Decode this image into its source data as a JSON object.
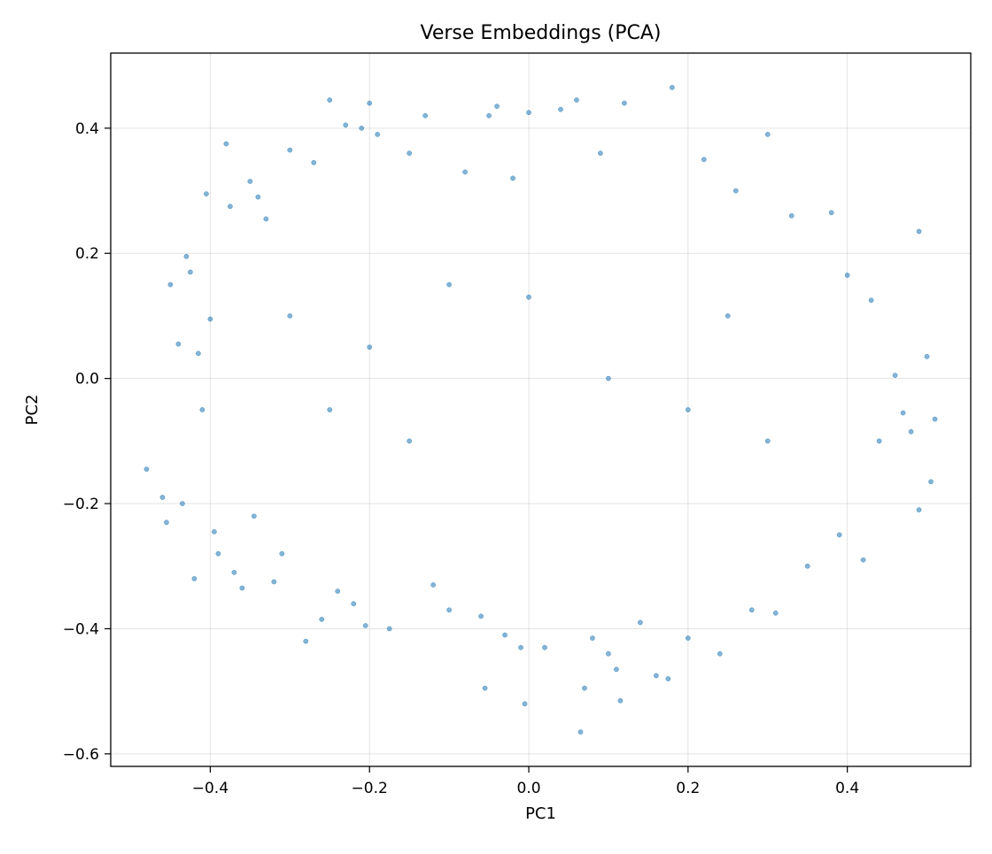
{
  "chart_data": {
    "type": "scatter",
    "title": "Verse Embeddings (PCA)",
    "xlabel": "PC1",
    "ylabel": "PC2",
    "xlim": [
      -0.525,
      0.555
    ],
    "ylim": [
      -0.62,
      0.52
    ],
    "grid": true,
    "legend": "none",
    "marker_color": "#1f77b4",
    "marker_alpha": 0.55,
    "x_ticks": [
      {
        "value": -0.4,
        "label": "−0.4"
      },
      {
        "value": -0.2,
        "label": "−0.2"
      },
      {
        "value": 0.0,
        "label": "0.0"
      },
      {
        "value": 0.2,
        "label": "0.2"
      },
      {
        "value": 0.4,
        "label": "0.4"
      }
    ],
    "y_ticks": [
      {
        "value": -0.6,
        "label": "−0.6"
      },
      {
        "value": -0.4,
        "label": "−0.4"
      },
      {
        "value": -0.2,
        "label": "−0.2"
      },
      {
        "value": 0.0,
        "label": "0.0"
      },
      {
        "value": 0.2,
        "label": "0.2"
      },
      {
        "value": 0.4,
        "label": "0.4"
      }
    ],
    "series": [
      {
        "points": [
          [
            -0.48,
            -0.145
          ],
          [
            -0.46,
            -0.19
          ],
          [
            -0.455,
            -0.23
          ],
          [
            -0.45,
            0.15
          ],
          [
            -0.44,
            0.055
          ],
          [
            -0.435,
            -0.2
          ],
          [
            -0.43,
            0.195
          ],
          [
            -0.425,
            0.17
          ],
          [
            -0.42,
            -0.32
          ],
          [
            -0.415,
            0.04
          ],
          [
            -0.41,
            -0.05
          ],
          [
            -0.405,
            0.295
          ],
          [
            -0.4,
            0.095
          ],
          [
            -0.395,
            -0.245
          ],
          [
            -0.39,
            -0.28
          ],
          [
            -0.38,
            0.375
          ],
          [
            -0.375,
            0.275
          ],
          [
            -0.37,
            -0.31
          ],
          [
            -0.36,
            -0.335
          ],
          [
            -0.35,
            0.315
          ],
          [
            -0.345,
            -0.22
          ],
          [
            -0.34,
            0.29
          ],
          [
            -0.33,
            0.255
          ],
          [
            -0.32,
            -0.325
          ],
          [
            -0.31,
            -0.28
          ],
          [
            -0.3,
            0.365
          ],
          [
            -0.28,
            -0.42
          ],
          [
            -0.27,
            0.345
          ],
          [
            -0.26,
            -0.385
          ],
          [
            -0.25,
            0.445
          ],
          [
            -0.24,
            -0.34
          ],
          [
            -0.23,
            0.405
          ],
          [
            -0.22,
            -0.36
          ],
          [
            -0.21,
            0.4
          ],
          [
            -0.205,
            -0.395
          ],
          [
            -0.2,
            0.44
          ],
          [
            -0.19,
            0.39
          ],
          [
            -0.175,
            -0.4
          ],
          [
            -0.15,
            0.36
          ],
          [
            -0.13,
            0.42
          ],
          [
            -0.12,
            -0.33
          ],
          [
            -0.1,
            -0.37
          ],
          [
            -0.08,
            0.33
          ],
          [
            -0.06,
            -0.38
          ],
          [
            -0.055,
            -0.495
          ],
          [
            -0.05,
            0.42
          ],
          [
            -0.04,
            0.435
          ],
          [
            -0.03,
            -0.41
          ],
          [
            -0.02,
            0.32
          ],
          [
            -0.01,
            -0.43
          ],
          [
            -0.005,
            -0.52
          ],
          [
            0.0,
            0.425
          ],
          [
            0.02,
            -0.43
          ],
          [
            0.04,
            0.43
          ],
          [
            0.06,
            0.445
          ],
          [
            0.065,
            -0.565
          ],
          [
            0.07,
            -0.495
          ],
          [
            0.08,
            -0.415
          ],
          [
            0.09,
            0.36
          ],
          [
            0.1,
            -0.44
          ],
          [
            0.11,
            -0.465
          ],
          [
            0.115,
            -0.515
          ],
          [
            0.12,
            0.44
          ],
          [
            0.14,
            -0.39
          ],
          [
            0.16,
            -0.475
          ],
          [
            0.175,
            -0.48
          ],
          [
            0.18,
            0.465
          ],
          [
            0.2,
            -0.415
          ],
          [
            0.22,
            0.35
          ],
          [
            0.24,
            -0.44
          ],
          [
            0.26,
            0.3
          ],
          [
            0.28,
            -0.37
          ],
          [
            0.3,
            0.39
          ],
          [
            0.31,
            -0.375
          ],
          [
            0.33,
            0.26
          ],
          [
            0.35,
            -0.3
          ],
          [
            0.38,
            0.265
          ],
          [
            0.39,
            -0.25
          ],
          [
            0.4,
            0.165
          ],
          [
            0.42,
            -0.29
          ],
          [
            0.43,
            0.125
          ],
          [
            0.44,
            -0.1
          ],
          [
            0.46,
            0.005
          ],
          [
            0.47,
            -0.055
          ],
          [
            0.48,
            -0.085
          ],
          [
            0.49,
            0.235
          ],
          [
            0.49,
            -0.21
          ],
          [
            0.5,
            0.035
          ],
          [
            0.505,
            -0.165
          ],
          [
            0.51,
            -0.065
          ],
          [
            -0.3,
            0.1
          ],
          [
            -0.25,
            -0.05
          ],
          [
            -0.2,
            0.05
          ],
          [
            -0.15,
            -0.1
          ],
          [
            -0.1,
            0.15
          ],
          [
            0.0,
            0.13
          ],
          [
            0.1,
            0.0
          ],
          [
            0.2,
            -0.05
          ],
          [
            0.25,
            0.1
          ],
          [
            0.3,
            -0.1
          ]
        ]
      }
    ]
  }
}
